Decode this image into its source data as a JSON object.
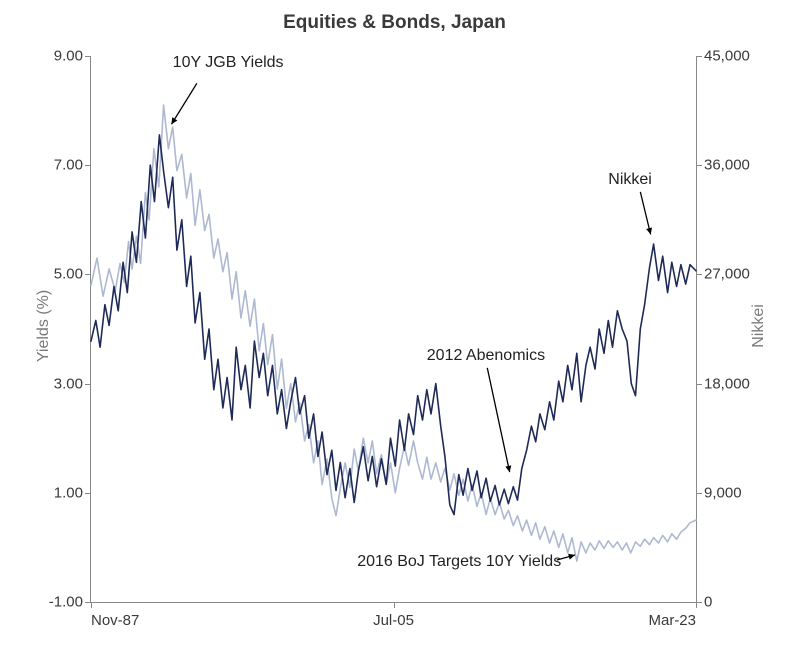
{
  "chart": {
    "type": "line",
    "title": "Equities & Bonds, Japan",
    "title_fontsize": 19,
    "title_color": "#3a3a3a",
    "background_color": "#ffffff",
    "axis_color": "#888888",
    "tick_fontsize": 15,
    "tick_color": "#3a3a3a",
    "label_fontsize": 16,
    "label_color": "#7a7a7a",
    "annotation_fontsize": 16,
    "annotation_color": "#222222",
    "grid": false,
    "series": [
      {
        "name": "10Y JGB Yields",
        "axis": "left",
        "color": "#aeb9d1",
        "line_width": 1.6
      },
      {
        "name": "Nikkei",
        "axis": "right",
        "color": "#1f2b57",
        "line_width": 1.6
      }
    ],
    "axes": {
      "left": {
        "label": "Yields  (%)",
        "ylim": [
          -1.0,
          9.0
        ],
        "yticks": [
          -1.0,
          1.0,
          3.0,
          5.0,
          7.0,
          9.0
        ],
        "tick_format": "0.00"
      },
      "right": {
        "label": "Nikkei",
        "ylim": [
          0,
          45000
        ],
        "yticks": [
          0,
          9000,
          18000,
          27000,
          36000,
          45000
        ],
        "tick_format": "0,000"
      },
      "x": {
        "xlim": [
          "1987-11",
          "2023-03"
        ],
        "xticks": [
          {
            "t": 0.0,
            "label": "Nov-87"
          },
          {
            "t": 0.5,
            "label": "Jul-05"
          },
          {
            "t": 1.0,
            "label": "Mar-23"
          }
        ]
      }
    },
    "annotations": {
      "jgb_label": "10Y JGB Yields",
      "nikkei_label": "Nikkei",
      "abenomics_label": "2012 Abenomics",
      "boj_label": "2016 BoJ Targets 10Y Yields"
    },
    "data": {
      "yields_10y_jgb": [
        [
          0.0,
          4.8
        ],
        [
          0.01,
          5.3
        ],
        [
          0.02,
          4.6
        ],
        [
          0.03,
          5.1
        ],
        [
          0.04,
          4.7
        ],
        [
          0.048,
          5.2
        ],
        [
          0.055,
          4.85
        ],
        [
          0.062,
          5.6
        ],
        [
          0.068,
          5.1
        ],
        [
          0.075,
          5.7
        ],
        [
          0.082,
          5.2
        ],
        [
          0.09,
          6.5
        ],
        [
          0.096,
          6.0
        ],
        [
          0.104,
          7.3
        ],
        [
          0.112,
          6.6
        ],
        [
          0.12,
          8.1
        ],
        [
          0.128,
          7.3
        ],
        [
          0.135,
          7.7
        ],
        [
          0.142,
          6.9
        ],
        [
          0.15,
          7.2
        ],
        [
          0.158,
          6.4
        ],
        [
          0.165,
          6.85
        ],
        [
          0.172,
          5.9
        ],
        [
          0.18,
          6.55
        ],
        [
          0.188,
          5.8
        ],
        [
          0.195,
          6.1
        ],
        [
          0.203,
          5.3
        ],
        [
          0.21,
          5.65
        ],
        [
          0.218,
          5.05
        ],
        [
          0.225,
          5.4
        ],
        [
          0.233,
          4.55
        ],
        [
          0.24,
          5.05
        ],
        [
          0.248,
          4.2
        ],
        [
          0.255,
          4.7
        ],
        [
          0.263,
          4.05
        ],
        [
          0.27,
          4.55
        ],
        [
          0.278,
          3.6
        ],
        [
          0.285,
          4.1
        ],
        [
          0.292,
          3.35
        ],
        [
          0.3,
          3.9
        ],
        [
          0.308,
          2.9
        ],
        [
          0.315,
          3.45
        ],
        [
          0.323,
          2.55
        ],
        [
          0.33,
          3.0
        ],
        [
          0.338,
          2.3
        ],
        [
          0.345,
          2.65
        ],
        [
          0.353,
          1.95
        ],
        [
          0.36,
          2.25
        ],
        [
          0.368,
          1.55
        ],
        [
          0.375,
          1.95
        ],
        [
          0.382,
          1.15
        ],
        [
          0.39,
          1.62
        ],
        [
          0.398,
          0.9
        ],
        [
          0.405,
          0.58
        ],
        [
          0.413,
          1.15
        ],
        [
          0.42,
          1.55
        ],
        [
          0.428,
          1.1
        ],
        [
          0.435,
          1.8
        ],
        [
          0.442,
          1.4
        ],
        [
          0.45,
          2.0
        ],
        [
          0.458,
          1.55
        ],
        [
          0.465,
          1.95
        ],
        [
          0.472,
          1.35
        ],
        [
          0.48,
          1.7
        ],
        [
          0.488,
          1.15
        ],
        [
          0.495,
          1.55
        ],
        [
          0.503,
          1.0
        ],
        [
          0.51,
          1.45
        ],
        [
          0.518,
          1.85
        ],
        [
          0.525,
          1.5
        ],
        [
          0.533,
          1.95
        ],
        [
          0.54,
          1.55
        ],
        [
          0.548,
          1.25
        ],
        [
          0.555,
          1.65
        ],
        [
          0.562,
          1.25
        ],
        [
          0.57,
          1.55
        ],
        [
          0.578,
          1.2
        ],
        [
          0.585,
          1.45
        ],
        [
          0.593,
          1.05
        ],
        [
          0.6,
          1.35
        ],
        [
          0.608,
          0.95
        ],
        [
          0.615,
          1.25
        ],
        [
          0.623,
          0.85
        ],
        [
          0.63,
          1.15
        ],
        [
          0.638,
          0.75
        ],
        [
          0.645,
          1.0
        ],
        [
          0.653,
          0.6
        ],
        [
          0.66,
          0.9
        ],
        [
          0.668,
          0.6
        ],
        [
          0.675,
          0.82
        ],
        [
          0.683,
          0.52
        ],
        [
          0.69,
          0.68
        ],
        [
          0.698,
          0.4
        ],
        [
          0.705,
          0.58
        ],
        [
          0.713,
          0.3
        ],
        [
          0.72,
          0.5
        ],
        [
          0.728,
          0.22
        ],
        [
          0.735,
          0.45
        ],
        [
          0.742,
          0.15
        ],
        [
          0.75,
          0.38
        ],
        [
          0.758,
          0.08
        ],
        [
          0.765,
          0.3
        ],
        [
          0.773,
          0.0
        ],
        [
          0.78,
          0.25
        ],
        [
          0.788,
          -0.1
        ],
        [
          0.795,
          0.18
        ],
        [
          0.803,
          -0.25
        ],
        [
          0.81,
          0.1
        ],
        [
          0.818,
          -0.1
        ],
        [
          0.825,
          0.08
        ],
        [
          0.833,
          -0.05
        ],
        [
          0.84,
          0.12
        ],
        [
          0.848,
          -0.02
        ],
        [
          0.855,
          0.12
        ],
        [
          0.863,
          0.0
        ],
        [
          0.87,
          0.1
        ],
        [
          0.878,
          -0.05
        ],
        [
          0.885,
          0.08
        ],
        [
          0.892,
          -0.1
        ],
        [
          0.9,
          0.1
        ],
        [
          0.908,
          0.02
        ],
        [
          0.915,
          0.15
        ],
        [
          0.923,
          0.05
        ],
        [
          0.93,
          0.18
        ],
        [
          0.938,
          0.08
        ],
        [
          0.945,
          0.22
        ],
        [
          0.953,
          0.1
        ],
        [
          0.96,
          0.25
        ],
        [
          0.968,
          0.15
        ],
        [
          0.975,
          0.28
        ],
        [
          0.983,
          0.35
        ],
        [
          0.99,
          0.45
        ],
        [
          1.0,
          0.5
        ]
      ],
      "nikkei": [
        [
          0.0,
          21500
        ],
        [
          0.008,
          23200
        ],
        [
          0.015,
          21000
        ],
        [
          0.023,
          24500
        ],
        [
          0.03,
          22800
        ],
        [
          0.038,
          26000
        ],
        [
          0.045,
          24000
        ],
        [
          0.053,
          28000
        ],
        [
          0.06,
          25500
        ],
        [
          0.068,
          30500
        ],
        [
          0.075,
          28000
        ],
        [
          0.083,
          33000
        ],
        [
          0.09,
          30000
        ],
        [
          0.098,
          36000
        ],
        [
          0.105,
          33000
        ],
        [
          0.113,
          38500
        ],
        [
          0.12,
          35500
        ],
        [
          0.128,
          32500
        ],
        [
          0.135,
          35000
        ],
        [
          0.142,
          29000
        ],
        [
          0.15,
          31500
        ],
        [
          0.158,
          26000
        ],
        [
          0.165,
          28500
        ],
        [
          0.172,
          23000
        ],
        [
          0.18,
          25500
        ],
        [
          0.188,
          20000
        ],
        [
          0.195,
          22500
        ],
        [
          0.203,
          17500
        ],
        [
          0.21,
          20000
        ],
        [
          0.218,
          16000
        ],
        [
          0.225,
          18500
        ],
        [
          0.233,
          15000
        ],
        [
          0.24,
          21000
        ],
        [
          0.248,
          17500
        ],
        [
          0.255,
          19500
        ],
        [
          0.263,
          16000
        ],
        [
          0.27,
          21500
        ],
        [
          0.278,
          18500
        ],
        [
          0.285,
          20500
        ],
        [
          0.292,
          17000
        ],
        [
          0.3,
          19500
        ],
        [
          0.308,
          15500
        ],
        [
          0.315,
          17500
        ],
        [
          0.323,
          14300
        ],
        [
          0.33,
          16500
        ],
        [
          0.338,
          18500
        ],
        [
          0.345,
          15500
        ],
        [
          0.353,
          17000
        ],
        [
          0.36,
          13500
        ],
        [
          0.368,
          15500
        ],
        [
          0.375,
          12000
        ],
        [
          0.382,
          14000
        ],
        [
          0.39,
          10500
        ],
        [
          0.398,
          12500
        ],
        [
          0.405,
          9200
        ],
        [
          0.412,
          11500
        ],
        [
          0.42,
          8600
        ],
        [
          0.428,
          11000
        ],
        [
          0.435,
          8200
        ],
        [
          0.442,
          10800
        ],
        [
          0.45,
          12800
        ],
        [
          0.458,
          10000
        ],
        [
          0.465,
          12000
        ],
        [
          0.472,
          9500
        ],
        [
          0.48,
          11800
        ],
        [
          0.488,
          9700
        ],
        [
          0.495,
          13500
        ],
        [
          0.503,
          11200
        ],
        [
          0.51,
          15000
        ],
        [
          0.518,
          12500
        ],
        [
          0.525,
          15500
        ],
        [
          0.533,
          13800
        ],
        [
          0.54,
          17000
        ],
        [
          0.548,
          15000
        ],
        [
          0.555,
          17500
        ],
        [
          0.562,
          15500
        ],
        [
          0.57,
          18000
        ],
        [
          0.578,
          14500
        ],
        [
          0.585,
          12000
        ],
        [
          0.593,
          8000
        ],
        [
          0.6,
          7200
        ],
        [
          0.608,
          10500
        ],
        [
          0.615,
          8800
        ],
        [
          0.623,
          11000
        ],
        [
          0.63,
          9200
        ],
        [
          0.638,
          10800
        ],
        [
          0.645,
          8600
        ],
        [
          0.653,
          10200
        ],
        [
          0.66,
          8300
        ],
        [
          0.668,
          9600
        ],
        [
          0.675,
          8000
        ],
        [
          0.683,
          9300
        ],
        [
          0.69,
          8100
        ],
        [
          0.698,
          9500
        ],
        [
          0.705,
          8400
        ],
        [
          0.712,
          11000
        ],
        [
          0.72,
          12500
        ],
        [
          0.728,
          14500
        ],
        [
          0.735,
          13200
        ],
        [
          0.742,
          15500
        ],
        [
          0.75,
          14200
        ],
        [
          0.758,
          16500
        ],
        [
          0.765,
          15000
        ],
        [
          0.773,
          18200
        ],
        [
          0.78,
          16500
        ],
        [
          0.788,
          19500
        ],
        [
          0.795,
          17500
        ],
        [
          0.803,
          20500
        ],
        [
          0.81,
          16500
        ],
        [
          0.818,
          19500
        ],
        [
          0.825,
          21000
        ],
        [
          0.833,
          19200
        ],
        [
          0.84,
          22500
        ],
        [
          0.848,
          20500
        ],
        [
          0.855,
          23200
        ],
        [
          0.862,
          21000
        ],
        [
          0.87,
          24000
        ],
        [
          0.878,
          22500
        ],
        [
          0.886,
          21500
        ],
        [
          0.893,
          18000
        ],
        [
          0.9,
          17000
        ],
        [
          0.908,
          22500
        ],
        [
          0.915,
          24500
        ],
        [
          0.923,
          27500
        ],
        [
          0.93,
          29500
        ],
        [
          0.938,
          26500
        ],
        [
          0.945,
          28500
        ],
        [
          0.953,
          25500
        ],
        [
          0.96,
          28000
        ],
        [
          0.968,
          26000
        ],
        [
          0.975,
          27800
        ],
        [
          0.983,
          26200
        ],
        [
          0.99,
          27800
        ],
        [
          1.0,
          27300
        ]
      ]
    }
  }
}
